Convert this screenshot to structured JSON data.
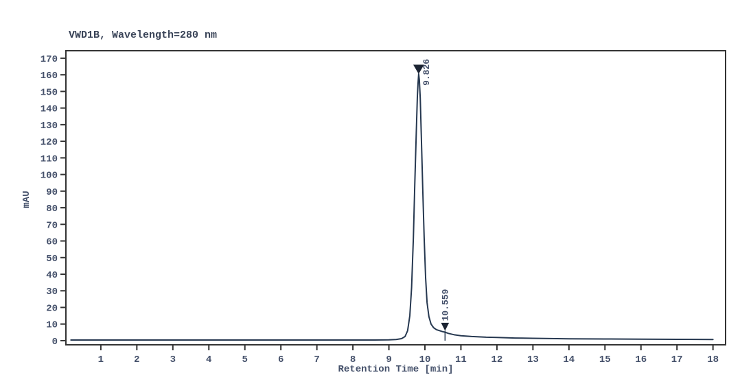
{
  "chart_data": {
    "type": "line",
    "title": "VWD1B, Wavelength=280 nm",
    "xlabel": "Retention Time [min]",
    "ylabel": "mAU",
    "xlim": [
      0.03,
      18.35
    ],
    "ylim": [
      -2.5,
      174.5
    ],
    "x_ticks": [
      1,
      2,
      3,
      4,
      5,
      6,
      7,
      8,
      9,
      10,
      11,
      12,
      13,
      14,
      15,
      16,
      17,
      18
    ],
    "y_ticks": [
      0,
      10,
      20,
      30,
      40,
      50,
      60,
      70,
      80,
      90,
      100,
      110,
      120,
      130,
      140,
      150,
      160,
      170
    ],
    "grid": false,
    "legend": "none",
    "colors": {
      "trace": "#263850",
      "axis": "#333333",
      "tick_label": "#44506a",
      "peak_label": "#44506a",
      "marker": "#1c2433"
    },
    "series": [
      {
        "name": "VWD1B signal",
        "points": [
          [
            0.17,
            0.4
          ],
          [
            1,
            0.4
          ],
          [
            2,
            0.4
          ],
          [
            3,
            0.4
          ],
          [
            4,
            0.4
          ],
          [
            5,
            0.4
          ],
          [
            6,
            0.4
          ],
          [
            7,
            0.4
          ],
          [
            8,
            0.4
          ],
          [
            8.6,
            0.4
          ],
          [
            9.0,
            0.5
          ],
          [
            9.2,
            0.7
          ],
          [
            9.35,
            1.2
          ],
          [
            9.45,
            2.5
          ],
          [
            9.52,
            6
          ],
          [
            9.58,
            15
          ],
          [
            9.63,
            32
          ],
          [
            9.68,
            62
          ],
          [
            9.72,
            95
          ],
          [
            9.76,
            125
          ],
          [
            9.79,
            147
          ],
          [
            9.81,
            155
          ],
          [
            9.826,
            160.5
          ],
          [
            9.845,
            157
          ],
          [
            9.87,
            146
          ],
          [
            9.9,
            124
          ],
          [
            9.94,
            92
          ],
          [
            9.98,
            62
          ],
          [
            10.02,
            38
          ],
          [
            10.06,
            23
          ],
          [
            10.11,
            14.5
          ],
          [
            10.17,
            10
          ],
          [
            10.24,
            7.8
          ],
          [
            10.32,
            6.6
          ],
          [
            10.42,
            5.9
          ],
          [
            10.5,
            5.4
          ],
          [
            10.559,
            5.1
          ],
          [
            10.65,
            4.4
          ],
          [
            10.8,
            3.6
          ],
          [
            11.0,
            3.0
          ],
          [
            11.3,
            2.5
          ],
          [
            11.7,
            2.1
          ],
          [
            12.0,
            1.9
          ],
          [
            12.5,
            1.6
          ],
          [
            13.0,
            1.4
          ],
          [
            14.0,
            1.15
          ],
          [
            15.0,
            1.0
          ],
          [
            16.0,
            0.9
          ],
          [
            17.0,
            0.8
          ],
          [
            18.0,
            0.7
          ]
        ]
      }
    ],
    "peaks": [
      {
        "label": "9.826",
        "rt": 9.826,
        "marker_mau": 160.5,
        "marker": "apex-down-triangle",
        "baseline_tick": false
      },
      {
        "label": "10.559",
        "rt": 10.559,
        "marker_mau": 6.0,
        "marker": "down-arrow",
        "baseline_tick": true
      }
    ]
  }
}
